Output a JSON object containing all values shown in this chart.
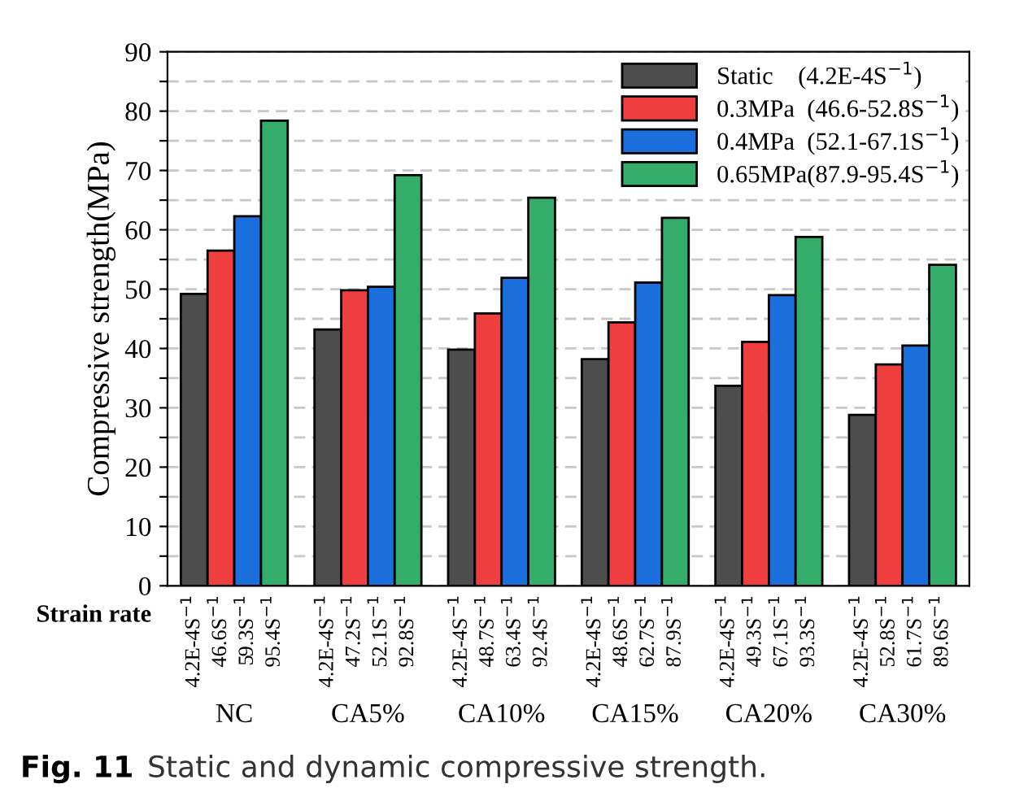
{
  "chart_data": {
    "type": "bar",
    "ylabel": "Compressive strength(MPa)",
    "categories": [
      "NC",
      "CA5%",
      "CA10%",
      "CA15%",
      "CA20%",
      "CA30%"
    ],
    "series": [
      {
        "name": "Static    (4.2E-4S$^{−1}$)",
        "color": "#4d4d4d",
        "values": [
          49.2,
          43.2,
          39.8,
          38.2,
          33.7,
          28.8
        ]
      },
      {
        "name": "0.3MPa  (46.6-52.8S$^{−1}$)",
        "color": "#ee3e3e",
        "values": [
          56.5,
          49.8,
          45.9,
          44.4,
          41.1,
          37.3
        ]
      },
      {
        "name": "0.4MPa  (52.1-67.1S$^{−1}$)",
        "color": "#1a6fdc",
        "values": [
          62.3,
          50.4,
          51.9,
          51.1,
          49.0,
          40.5
        ]
      },
      {
        "name": "0.65MPa(87.9-95.4S$^{−1}$)",
        "color": "#34ad6a",
        "values": [
          78.4,
          69.2,
          65.4,
          62.0,
          58.8,
          54.1
        ]
      }
    ],
    "ylim": [
      0,
      90
    ],
    "yticks": [
      0,
      {
        "value": 5,
        "label": null
      },
      10,
      {
        "value": 15,
        "label": null
      },
      20,
      {
        "value": 25,
        "label": null
      },
      30,
      {
        "value": 35,
        "label": null
      },
      40,
      {
        "value": 45,
        "label": null
      },
      50,
      {
        "value": 55,
        "label": null
      },
      60,
      {
        "value": 65,
        "label": null
      },
      70,
      {
        "value": 75,
        "label": null
      },
      80,
      {
        "value": 85,
        "label": null
      },
      90
    ],
    "grid": "y",
    "legend": "top right",
    "annotations": [
      "Strain rate",
      "4.2E-4S$^{−1}$",
      "46.6S$^{−1}$",
      "59.3S$^{−1}$",
      "95.4S$^{−1}$",
      "4.2E-4S$^{−1}$",
      "47.2S$^{−1}$",
      "52.1S$^{−1}$",
      "92.8S$^{−1}$",
      "4.2E-4S$^{−1}$",
      "48.7S$^{−1}$",
      "63.4S$^{−1}$",
      "92.4S$^{−1}$",
      "4.2E-4S$^{−1}$",
      "48.6S$^{−1}$",
      "62.7S$^{−1}$",
      "87.9S$^{−1}$",
      "4.2E-4S$^{−1}$",
      "49.3S$^{−1}$",
      "67.1S$^{−1}$",
      "93.3S$^{−1}$",
      "4.2E-4S$^{−1}$",
      "52.8S$^{−1}$",
      "61.7S$^{−1}$",
      "89.6S$^{−1}$",
      "Fig. 11",
      "Static and dynamic compressive strength."
    ]
  }
}
